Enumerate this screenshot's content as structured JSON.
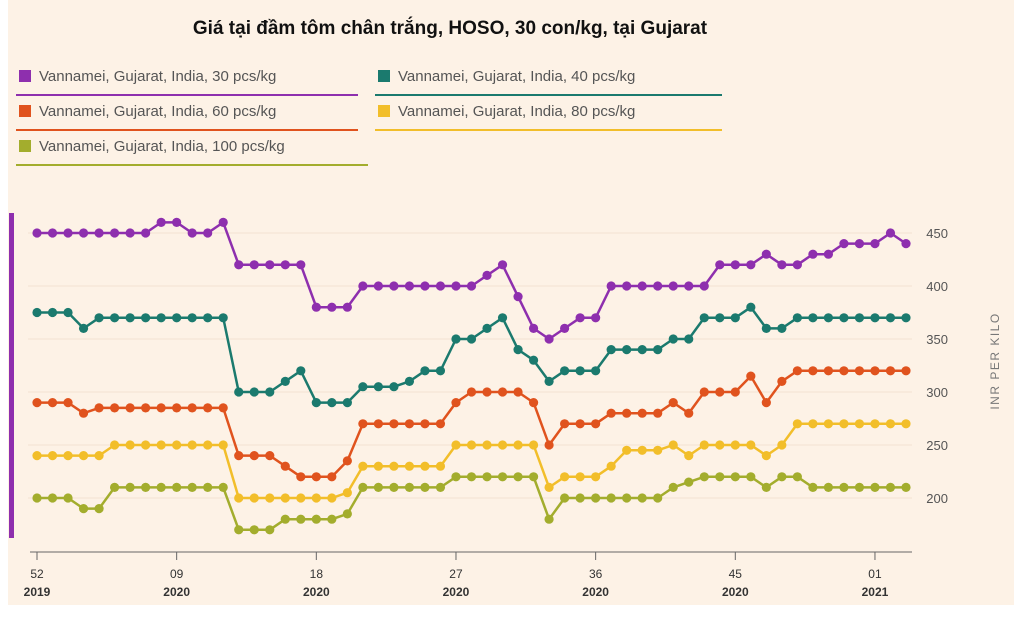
{
  "chart_data": {
    "type": "line",
    "title": "Giá tại đầm tôm chân trắng, HOSO, 30 con/kg, tại Gujarat",
    "ylabel": "INR PER KILO",
    "xlabel": "",
    "ylim": [
      150,
      470
    ],
    "yticks": [
      200,
      250,
      300,
      350,
      400,
      450
    ],
    "x_ticks": [
      {
        "week": "52",
        "year": "2019",
        "index": 0
      },
      {
        "week": "09",
        "year": "2020",
        "index": 9
      },
      {
        "week": "18",
        "year": "2020",
        "index": 18
      },
      {
        "week": "27",
        "year": "2020",
        "index": 27
      },
      {
        "week": "36",
        "year": "2020",
        "index": 36
      },
      {
        "week": "45",
        "year": "2020",
        "index": 45
      },
      {
        "week": "01",
        "year": "2021",
        "index": 54
      }
    ],
    "series": [
      {
        "name": "Vannamei, Gujarat, India, 30 pcs/kg",
        "color": "#8e2fae",
        "values": [
          450,
          450,
          450,
          450,
          450,
          450,
          450,
          450,
          460,
          460,
          450,
          450,
          460,
          420,
          420,
          420,
          420,
          420,
          380,
          380,
          380,
          400,
          400,
          400,
          400,
          400,
          400,
          400,
          400,
          410,
          420,
          390,
          360,
          350,
          360,
          370,
          370,
          400,
          400,
          400,
          400,
          400,
          400,
          400,
          420,
          420,
          420,
          430,
          420,
          420,
          430,
          430,
          440,
          440,
          440,
          450,
          440
        ]
      },
      {
        "name": "Vannamei, Gujarat, India, 40 pcs/kg",
        "color": "#1b7a6e",
        "values": [
          375,
          375,
          375,
          360,
          370,
          370,
          370,
          370,
          370,
          370,
          370,
          370,
          370,
          300,
          300,
          300,
          310,
          320,
          290,
          290,
          290,
          305,
          305,
          305,
          310,
          320,
          320,
          350,
          350,
          360,
          370,
          340,
          330,
          310,
          320,
          320,
          320,
          340,
          340,
          340,
          340,
          350,
          350,
          370,
          370,
          370,
          380,
          360,
          360,
          370,
          370,
          370,
          370,
          370,
          370,
          370,
          370
        ]
      },
      {
        "name": "Vannamei, Gujarat, India, 60 pcs/kg",
        "color": "#e0531e",
        "values": [
          290,
          290,
          290,
          280,
          285,
          285,
          285,
          285,
          285,
          285,
          285,
          285,
          285,
          240,
          240,
          240,
          230,
          220,
          220,
          220,
          235,
          270,
          270,
          270,
          270,
          270,
          270,
          290,
          300,
          300,
          300,
          300,
          290,
          250,
          270,
          270,
          270,
          280,
          280,
          280,
          280,
          290,
          280,
          300,
          300,
          300,
          315,
          290,
          310,
          320,
          320,
          320,
          320,
          320,
          320,
          320,
          320
        ]
      },
      {
        "name": "Vannamei, Gujarat, India, 80 pcs/kg",
        "color": "#f2be2a",
        "values": [
          240,
          240,
          240,
          240,
          240,
          250,
          250,
          250,
          250,
          250,
          250,
          250,
          250,
          200,
          200,
          200,
          200,
          200,
          200,
          200,
          205,
          230,
          230,
          230,
          230,
          230,
          230,
          250,
          250,
          250,
          250,
          250,
          250,
          210,
          220,
          220,
          220,
          230,
          245,
          245,
          245,
          250,
          240,
          250,
          250,
          250,
          250,
          240,
          250,
          270,
          270,
          270,
          270,
          270,
          270,
          270,
          270
        ]
      },
      {
        "name": "Vannamei, Gujarat, India, 100 pcs/kg",
        "color": "#a3ad2d",
        "values": [
          200,
          200,
          200,
          190,
          190,
          210,
          210,
          210,
          210,
          210,
          210,
          210,
          210,
          170,
          170,
          170,
          180,
          180,
          180,
          180,
          185,
          210,
          210,
          210,
          210,
          210,
          210,
          220,
          220,
          220,
          220,
          220,
          220,
          180,
          200,
          200,
          200,
          200,
          200,
          200,
          200,
          210,
          215,
          220,
          220,
          220,
          220,
          210,
          220,
          220,
          210,
          210,
          210,
          210,
          210,
          210,
          210
        ]
      }
    ]
  }
}
